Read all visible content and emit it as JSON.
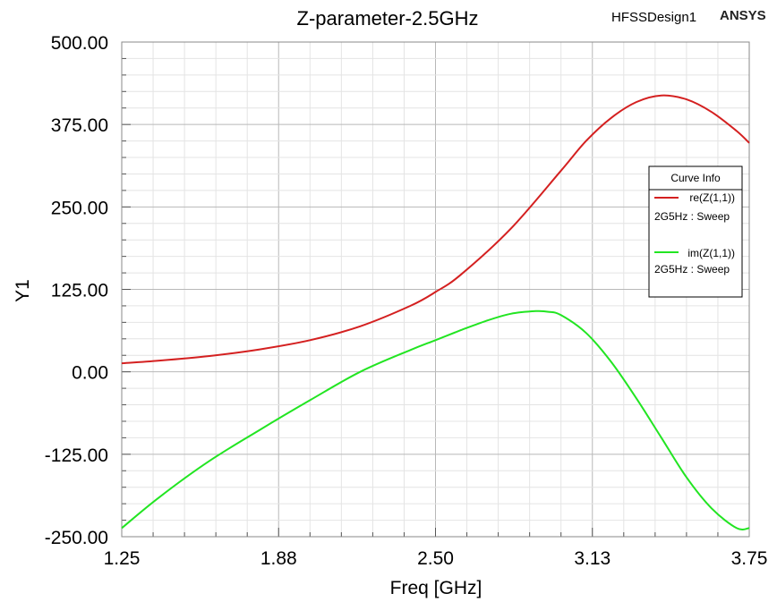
{
  "header": {
    "design_name": "HFSSDesign1",
    "brand": "ANSYS"
  },
  "legend": {
    "title": "Curve Info"
  },
  "chart_data": {
    "type": "line",
    "title": "Z-parameter-2.5GHz",
    "xlabel": "Freq [GHz]",
    "ylabel": "Y1",
    "xlim": [
      1.25,
      3.75
    ],
    "ylim": [
      -250,
      500
    ],
    "xticks": [
      "1.25",
      "1.88",
      "2.50",
      "3.13",
      "3.75"
    ],
    "yticks": [
      "500.00",
      "375.00",
      "250.00",
      "125.00",
      "0.00",
      "-125.00",
      "-250.00"
    ],
    "grid": true,
    "legend_position": "right",
    "series": [
      {
        "name": "re(Z(1,1))",
        "sweep": "2G5Hz : Sweep",
        "color": "#d42020",
        "x": [
          1.25,
          1.4,
          1.6,
          1.8,
          2.0,
          2.2,
          2.4,
          2.5,
          2.6,
          2.8,
          3.0,
          3.1,
          3.2,
          3.3,
          3.4,
          3.5,
          3.6,
          3.7,
          3.75
        ],
        "y": [
          13,
          17,
          24,
          34,
          48,
          69,
          100,
          121,
          147,
          217,
          305,
          350,
          385,
          409,
          419,
          413,
          394,
          365,
          347
        ]
      },
      {
        "name": "im(Z(1,1))",
        "sweep": "2G5Hz : Sweep",
        "color": "#22e522",
        "x": [
          1.25,
          1.4,
          1.6,
          1.8,
          2.0,
          2.2,
          2.4,
          2.5,
          2.6,
          2.7,
          2.8,
          2.9,
          2.95,
          3.0,
          3.1,
          3.2,
          3.3,
          3.4,
          3.5,
          3.6,
          3.7,
          3.75
        ],
        "y": [
          -237,
          -190,
          -135,
          -88,
          -43,
          0,
          33,
          48,
          63,
          77,
          88,
          92,
          91,
          86,
          59,
          15,
          -40,
          -100,
          -160,
          -207,
          -237,
          -237
        ]
      }
    ]
  }
}
